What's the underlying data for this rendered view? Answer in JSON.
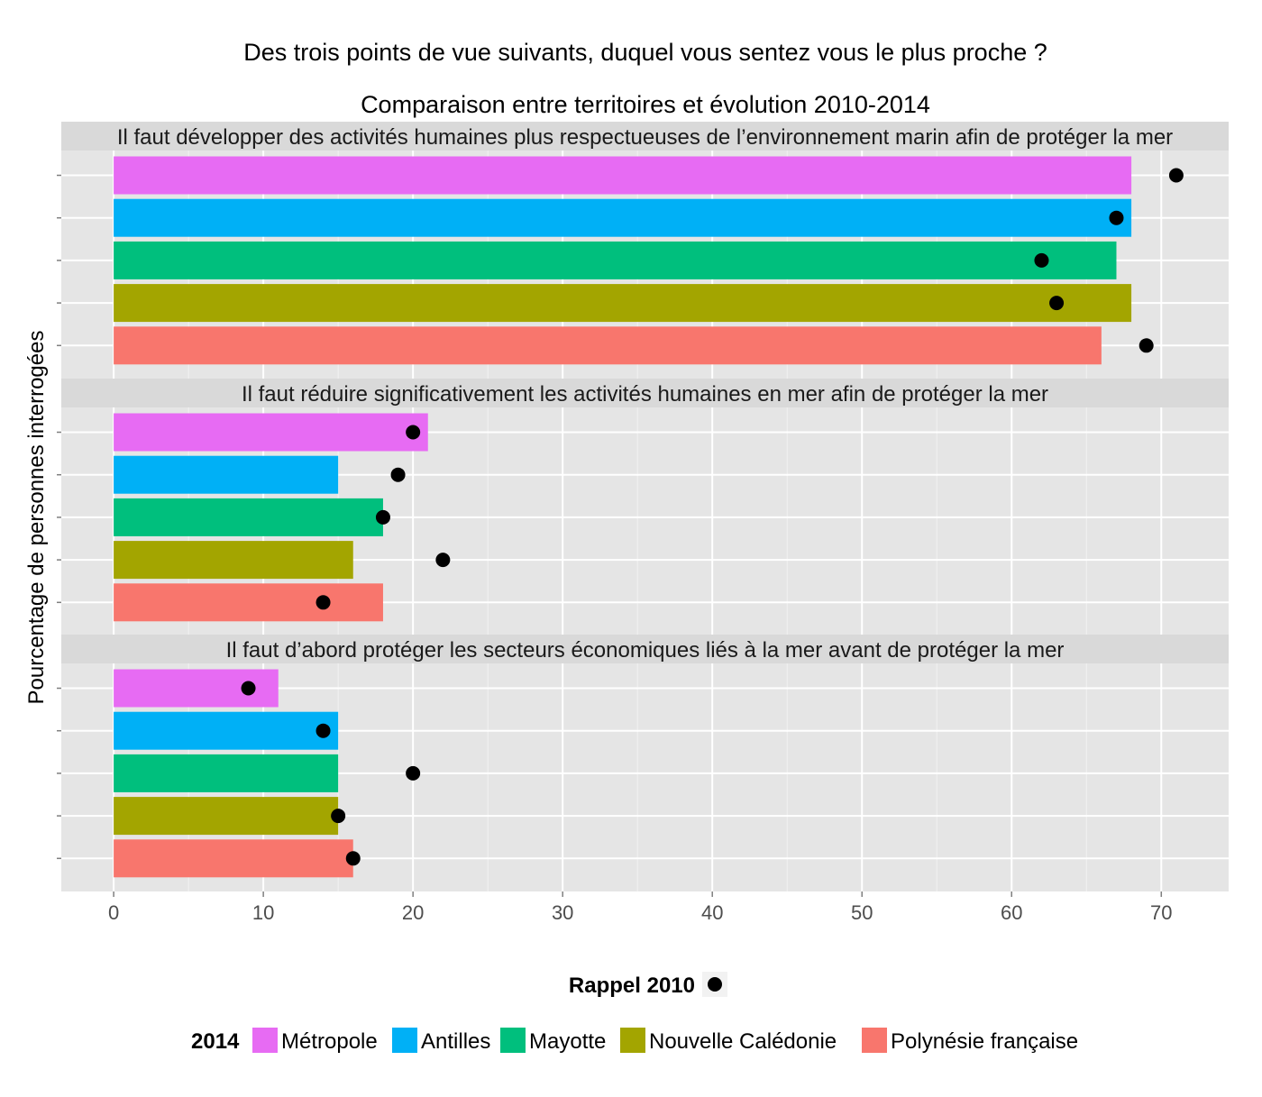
{
  "chart_data": {
    "type": "bar",
    "title": "Des trois points de vue suivants, duquel vous sentez vous le plus proche ?",
    "subtitle": "Comparaison entre territoires et évolution 2010-2014",
    "ylabel": "Pourcentage de personnes interrogées",
    "xlabel": "",
    "xlim": [
      -3.5,
      74.5
    ],
    "xticks": [
      0,
      10,
      20,
      30,
      40,
      50,
      60,
      70
    ],
    "categories": [
      "Métropole",
      "Antilles",
      "Mayotte",
      "Nouvelle Calédonie",
      "Polynésie française"
    ],
    "colors": [
      "#E76BF3",
      "#00B0F6",
      "#00BF7D",
      "#A3A500",
      "#F8766D"
    ],
    "legend_2014_title": "2014",
    "legend_2010_title": "Rappel 2010",
    "panels": [
      {
        "label": "Il faut développer des activités humaines plus respectueuses de l’environnement marin afin de protéger la mer",
        "values_2014": [
          68,
          68,
          67,
          68,
          66
        ],
        "values_2010": [
          71,
          67,
          62,
          63,
          69
        ]
      },
      {
        "label": "Il faut réduire significativement les activités humaines en mer afin de protéger la mer",
        "values_2014": [
          21,
          15,
          18,
          16,
          18
        ],
        "values_2010": [
          20,
          19,
          18,
          22,
          14
        ]
      },
      {
        "label": "Il faut d’abord protéger les secteurs économiques liés à la mer avant de protéger la mer",
        "values_2014": [
          11,
          15,
          15,
          15,
          16
        ],
        "values_2010": [
          9,
          14,
          20,
          15,
          16
        ]
      }
    ]
  }
}
